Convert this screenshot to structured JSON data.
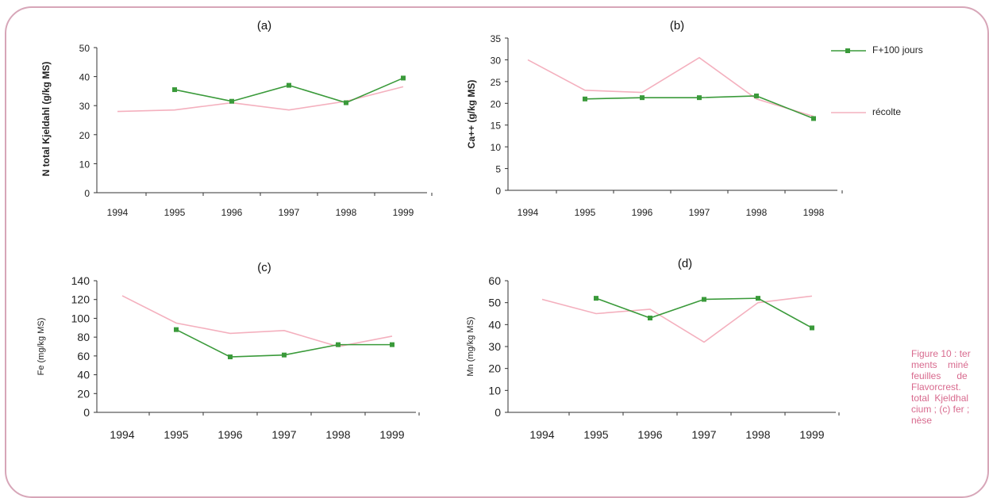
{
  "chart_data": [
    {
      "type": "line",
      "panel": "(a)",
      "ylabel": "N total Kjeldahl (g/kg MS)",
      "ylim": [
        0,
        50
      ],
      "yticks": [
        0,
        10,
        20,
        30,
        40,
        50
      ],
      "categories": [
        "1994",
        "1995",
        "1996",
        "1997",
        "1998",
        "1999"
      ],
      "series": [
        {
          "name": "F+100 jours",
          "values": [
            null,
            35.5,
            31.5,
            37,
            31,
            39.5
          ]
        },
        {
          "name": "récolte",
          "values": [
            28,
            28.5,
            31,
            28.5,
            31.5,
            36.5
          ]
        }
      ]
    },
    {
      "type": "line",
      "panel": "(b)",
      "ylabel": "Ca++ (g/kg MS)",
      "ylim": [
        0,
        35
      ],
      "yticks": [
        0,
        5,
        10,
        15,
        20,
        25,
        30,
        35
      ],
      "categories": [
        "1994",
        "1995",
        "1996",
        "1997",
        "1998",
        "1998"
      ],
      "series": [
        {
          "name": "F+100 jours",
          "values": [
            null,
            21,
            21.3,
            21.3,
            21.7,
            16.5
          ]
        },
        {
          "name": "récolte",
          "values": [
            30,
            23,
            22.5,
            30.5,
            21,
            17
          ]
        }
      ]
    },
    {
      "type": "line",
      "panel": "(c)",
      "ylabel": "Fe (mg/kg MS)",
      "ylim": [
        0,
        140
      ],
      "yticks": [
        0,
        20,
        40,
        60,
        80,
        100,
        120,
        140
      ],
      "categories": [
        "1994",
        "1995",
        "1996",
        "1997",
        "1998",
        "1999"
      ],
      "series": [
        {
          "name": "F+100 jours",
          "values": [
            null,
            88,
            59,
            61,
            72,
            72
          ]
        },
        {
          "name": "récolte",
          "values": [
            124,
            95,
            84,
            87,
            70,
            81
          ]
        }
      ]
    },
    {
      "type": "line",
      "panel": "(d)",
      "ylabel": "Mn (mg/kg MS)",
      "ylim": [
        0,
        60
      ],
      "yticks": [
        0,
        10,
        20,
        30,
        40,
        50,
        60
      ],
      "categories": [
        "1994",
        "1995",
        "1996",
        "1997",
        "1998",
        "1999"
      ],
      "series": [
        {
          "name": "F+100 jours",
          "values": [
            null,
            52,
            43,
            51.5,
            52,
            38.5
          ]
        },
        {
          "name": "récolte",
          "values": [
            51.5,
            45,
            47,
            32,
            50,
            53
          ]
        }
      ]
    }
  ],
  "legend": [
    {
      "name": "F+100 jours",
      "color": "#3a9a3a",
      "marker": "square"
    },
    {
      "name": "récolte",
      "color": "#f4b0be",
      "marker": "none"
    }
  ],
  "colors": {
    "green": "#3a9a3a",
    "pink": "#f4b0be",
    "frame": "#d7a6b8",
    "caption": "#d86a8e"
  },
  "caption": "Figure 10 : ter\nments    miné\nfeuilles      de\nFlavorcrest. \ntotal  Kjeldhal\ncium ; (c) fer ;\nnèse"
}
